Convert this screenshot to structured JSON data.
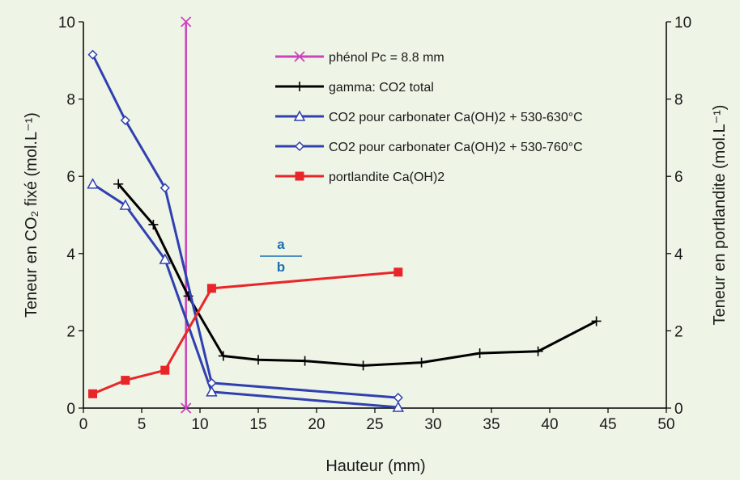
{
  "chart_data": {
    "type": "line",
    "xlabel": "Hauteur (mm)",
    "ylabel_left": "Teneur en CO₂ fixé (mol.L⁻¹)",
    "ylabel_right": "Teneur en portlandite (mol.L⁻¹)",
    "xlim": [
      0,
      50
    ],
    "ylim": [
      0,
      10
    ],
    "xticks": [
      "0",
      "5",
      "10",
      "15",
      "20",
      "25",
      "30",
      "35",
      "40",
      "45",
      "50"
    ],
    "yticks": [
      "0",
      "2",
      "4",
      "6",
      "8",
      "10"
    ],
    "grid": false,
    "legend_position": "top-center",
    "annotation": {
      "numerator": "a",
      "denominator": "b",
      "x": 17,
      "y": 3.9,
      "color": "#1a6fb5"
    },
    "series": [
      {
        "name": "phénol Pc = 8.8 mm",
        "color": "#cc44bb",
        "marker": "x",
        "x": [
          8.8,
          8.8
        ],
        "y": [
          0,
          10
        ]
      },
      {
        "name": "gamma: CO2 total",
        "color": "#000000",
        "marker": "plus",
        "x": [
          3,
          6,
          9,
          12,
          15,
          19,
          24,
          29,
          34,
          39,
          44
        ],
        "y": [
          5.8,
          4.75,
          2.9,
          1.35,
          1.25,
          1.22,
          1.1,
          1.18,
          1.42,
          1.47,
          2.25
        ]
      },
      {
        "name": "CO2 pour carbonater Ca(OH)2 + 530-630°C",
        "color": "#3040b0",
        "marker": "triangle",
        "x": [
          0.8,
          3.6,
          7,
          11,
          27
        ],
        "y": [
          5.8,
          5.25,
          3.85,
          0.42,
          0.02
        ]
      },
      {
        "name": "CO2 pour carbonater Ca(OH)2 + 530-760°C",
        "color": "#3040b0",
        "marker": "diamond",
        "x": [
          0.8,
          3.6,
          7,
          11,
          27
        ],
        "y": [
          9.15,
          7.45,
          5.7,
          0.65,
          0.27
        ]
      },
      {
        "name": "portlandite Ca(OH)2",
        "color": "#e8262a",
        "marker": "square",
        "x": [
          0.8,
          3.6,
          7,
          11,
          27
        ],
        "y": [
          0.37,
          0.72,
          0.98,
          3.1,
          3.52
        ]
      }
    ]
  }
}
